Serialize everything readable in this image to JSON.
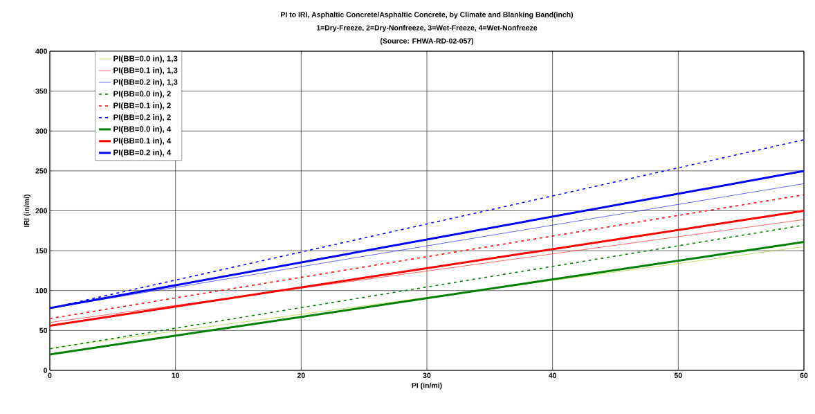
{
  "chart_data": {
    "type": "line",
    "title": "PI to IRI, Asphaltic Concrete/Asphaltic Concrete, by Climate and Blanking Band(inch)",
    "subtitle": "1=Dry-Freeze, 2=Dry-Nonfreeze, 3=Wet-Freeze, 4=Wet-Nonfreeze",
    "annotations": [
      "(Source: FHWA-RD-02-057)"
    ],
    "xlabel": "PI (in/mi)",
    "ylabel": "IRI (in/mi)",
    "x": [
      0,
      60
    ],
    "series": [
      {
        "name": "PI(BB=0.0 in), 1,3",
        "color": "#99cc00",
        "line_style": "solid",
        "values": [
          28,
          155
        ]
      },
      {
        "name": "PI(BB=0.1 in), 1,3",
        "color": "#ff0000",
        "line_style": "solid",
        "values": [
          60,
          189
        ]
      },
      {
        "name": "PI(BB=0.2 in), 1,3",
        "color": "#0000ff",
        "line_style": "solid",
        "values": [
          78,
          234
        ]
      },
      {
        "name": "PI(BB=0.0 in), 2",
        "color": "#008000",
        "line_style": "dashed",
        "values": [
          27,
          182
        ]
      },
      {
        "name": "PI(BB=0.1 in), 2",
        "color": "#ff0000",
        "line_style": "dashed",
        "values": [
          65,
          220
        ]
      },
      {
        "name": "PI(BB=0.2 in), 2",
        "color": "#0000ff",
        "line_style": "dashed",
        "values": [
          78,
          289
        ]
      },
      {
        "name": "PI(BB=0.0 in), 4",
        "color": "#008000",
        "line_style": "solid",
        "values": [
          20,
          161
        ]
      },
      {
        "name": "PI(BB=0.1 in), 4",
        "color": "#ff0000",
        "line_style": "solid",
        "values": [
          56,
          200
        ]
      },
      {
        "name": "PI(BB=0.2 in), 4",
        "color": "#0000ff",
        "line_style": "solid",
        "values": [
          78,
          250
        ]
      }
    ],
    "xlim": [
      0,
      60
    ],
    "ylim": [
      0,
      400
    ],
    "xticks": [
      0,
      10,
      20,
      30,
      40,
      50,
      60
    ],
    "yticks": [
      0,
      50,
      100,
      150,
      200,
      250,
      300,
      350,
      400
    ],
    "grid": true,
    "legend": "top left",
    "marker": "none"
  }
}
